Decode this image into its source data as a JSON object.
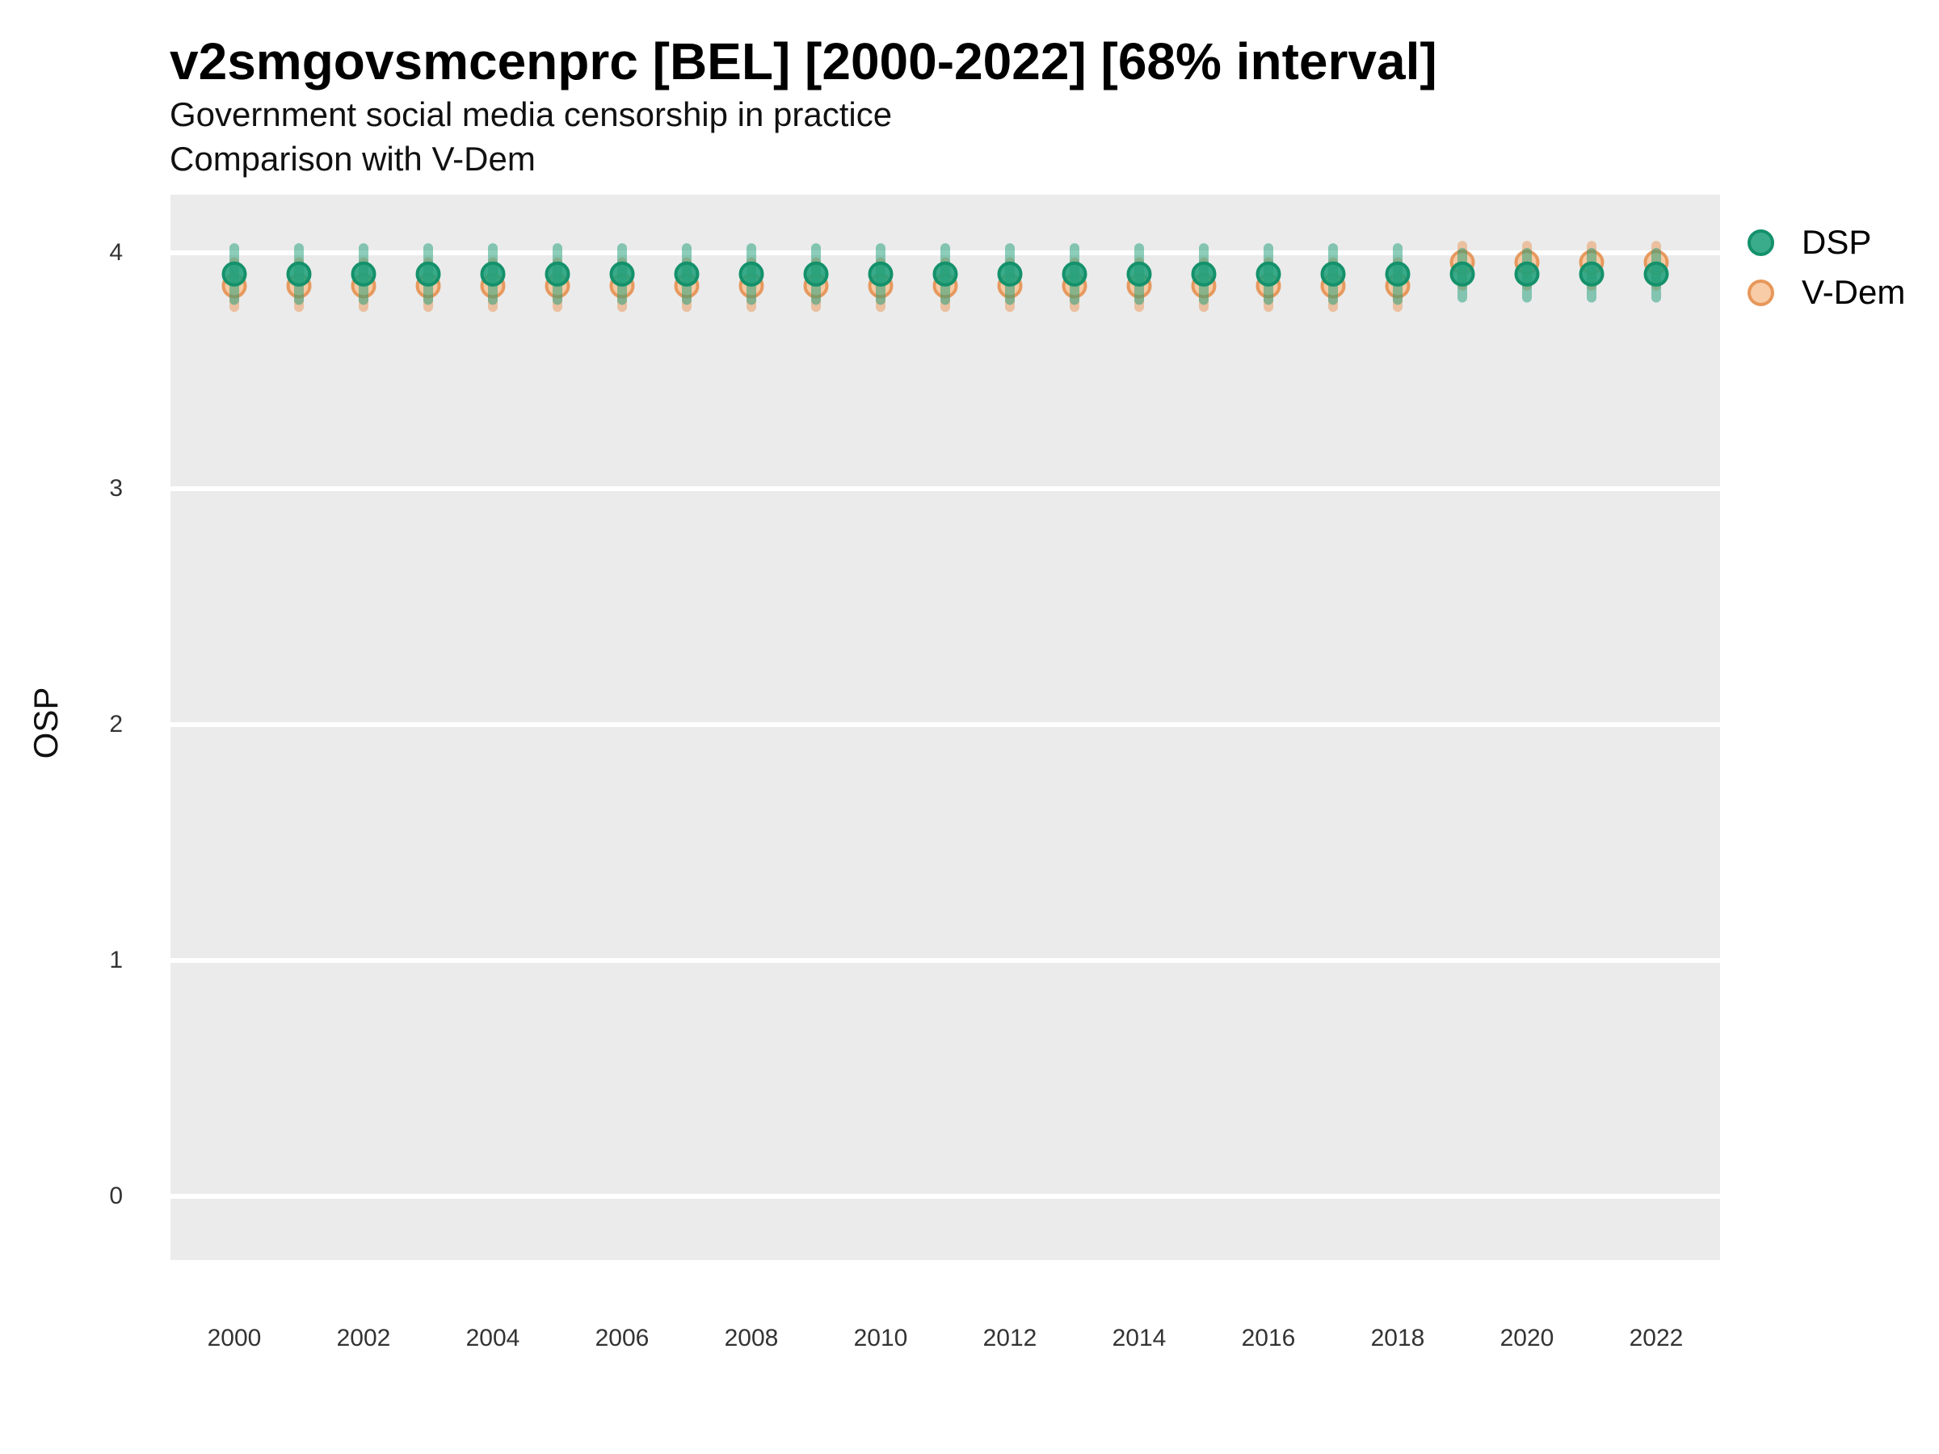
{
  "header": {
    "title": "v2smgovsmcenprc [BEL] [2000-2022] [68% interval]",
    "subtitle_line1": "Government social media censorship in practice",
    "subtitle_line2": "Comparison with V-Dem"
  },
  "legend": {
    "position": "right",
    "items": [
      {
        "label": "DSP"
      },
      {
        "label": "V-Dem"
      }
    ]
  },
  "style": {
    "panel_background": "#EBEBEB",
    "gridline_color": "#FFFFFF",
    "tick_label_color": "#333333",
    "text_color": "#000000"
  },
  "chart_data": {
    "type": "scatter",
    "title": "v2smgovsmcenprc [BEL] [2000-2022] [68% interval]",
    "subtitle": "Government social media censorship in practice — Comparison with V-Dem",
    "interval": "68%",
    "xlabel": "",
    "ylabel": "OSP",
    "ylim": [
      0,
      4
    ],
    "y_ticks": [
      0,
      1,
      2,
      3,
      4
    ],
    "x": [
      2000,
      2001,
      2002,
      2003,
      2004,
      2005,
      2006,
      2007,
      2008,
      2009,
      2010,
      2011,
      2012,
      2013,
      2014,
      2015,
      2016,
      2017,
      2018,
      2019,
      2020,
      2021,
      2022
    ],
    "x_tick_labels": [
      "2000",
      "2002",
      "2004",
      "2006",
      "2008",
      "2010",
      "2012",
      "2014",
      "2016",
      "2018",
      "2020",
      "2022"
    ],
    "grid": "horizontal white major gridlines on grey panel, no vertical gridlines",
    "legend_position": "right",
    "series": [
      {
        "name": "DSP",
        "color": "#1b9e77",
        "fill": "rgba(32,160,123,0.88)",
        "stroke": "#14916B",
        "interval_color": "rgba(27,158,119,0.5)",
        "values": [
          3.91,
          3.91,
          3.91,
          3.91,
          3.91,
          3.91,
          3.91,
          3.91,
          3.91,
          3.91,
          3.91,
          3.91,
          3.91,
          3.91,
          3.91,
          3.91,
          3.91,
          3.91,
          3.91,
          3.91,
          3.91,
          3.91,
          3.91
        ],
        "lower": [
          3.8,
          3.8,
          3.8,
          3.8,
          3.8,
          3.8,
          3.8,
          3.8,
          3.8,
          3.8,
          3.8,
          3.8,
          3.8,
          3.8,
          3.8,
          3.8,
          3.8,
          3.8,
          3.8,
          3.81,
          3.81,
          3.81,
          3.81
        ],
        "upper": [
          4.02,
          4.02,
          4.02,
          4.02,
          4.02,
          4.02,
          4.02,
          4.02,
          4.02,
          4.02,
          4.02,
          4.02,
          4.02,
          4.02,
          4.02,
          4.02,
          4.02,
          4.02,
          4.02,
          4.0,
          4.0,
          4.0,
          4.0
        ]
      },
      {
        "name": "V-Dem",
        "color": "#e8955a",
        "fill": "rgba(246,198,156,0.9)",
        "stroke": "rgba(229,145,82,0.9)",
        "interval_color": "rgba(233,150,85,0.5)",
        "values": [
          3.86,
          3.86,
          3.86,
          3.86,
          3.86,
          3.86,
          3.86,
          3.86,
          3.86,
          3.86,
          3.86,
          3.86,
          3.86,
          3.86,
          3.86,
          3.86,
          3.86,
          3.86,
          3.86,
          3.96,
          3.96,
          3.96,
          3.96
        ],
        "lower": [
          3.77,
          3.77,
          3.77,
          3.77,
          3.77,
          3.77,
          3.77,
          3.77,
          3.77,
          3.77,
          3.77,
          3.77,
          3.77,
          3.77,
          3.77,
          3.77,
          3.77,
          3.77,
          3.77,
          3.86,
          3.86,
          3.86,
          3.86
        ],
        "upper": [
          3.96,
          3.96,
          3.96,
          3.96,
          3.96,
          3.96,
          3.96,
          3.96,
          3.96,
          3.96,
          3.96,
          3.96,
          3.96,
          3.96,
          3.96,
          3.96,
          3.96,
          3.96,
          3.96,
          4.03,
          4.03,
          4.03,
          4.03
        ]
      }
    ]
  }
}
